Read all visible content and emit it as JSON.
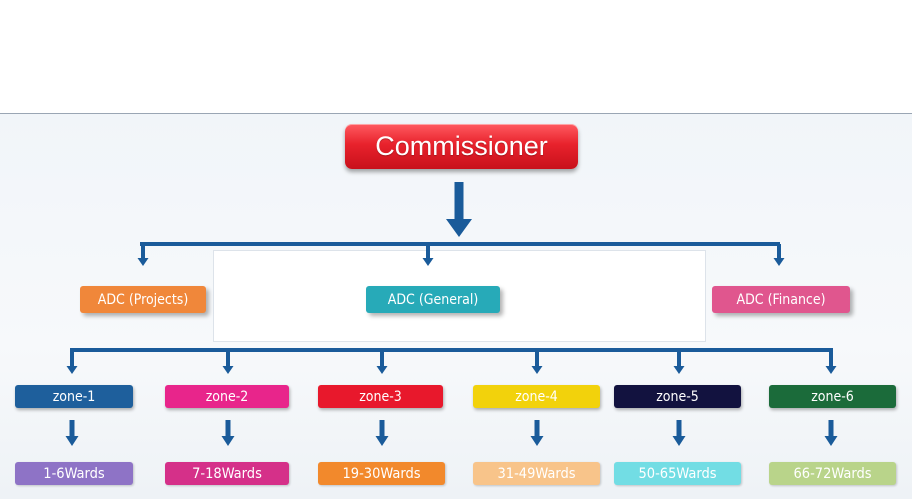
{
  "top_node": {
    "label": "Commissioner",
    "color": "#e8222c"
  },
  "adc": [
    {
      "label": "ADC (Projects)",
      "color": "#f0873a"
    },
    {
      "label": "ADC (General)",
      "color": "#27aab8"
    },
    {
      "label": "ADC (Finance)",
      "color": "#e0568e"
    }
  ],
  "zones": [
    {
      "label": "zone-1",
      "color": "#1e5f9c",
      "wards": "1-6Wards",
      "wards_color": "#8e73c6"
    },
    {
      "label": "zone-2",
      "color": "#e8258b",
      "wards": "7-18Wards",
      "wards_color": "#d53089"
    },
    {
      "label": "zone-3",
      "color": "#e8182c",
      "wards": "19-30Wards",
      "wards_color": "#f2892c"
    },
    {
      "label": "zone-4",
      "color": "#f2d20c",
      "wards": "31-49Wards",
      "wards_color": "#f8c48a"
    },
    {
      "label": "zone-5",
      "color": "#12123f",
      "wards": "50-65Wards",
      "wards_color": "#72dde4"
    },
    {
      "label": "zone-6",
      "color": "#1b6b3a",
      "wards": "66-72Wards",
      "wards_color": "#b9d48a"
    }
  ],
  "connector_color": "#1a5b9a"
}
